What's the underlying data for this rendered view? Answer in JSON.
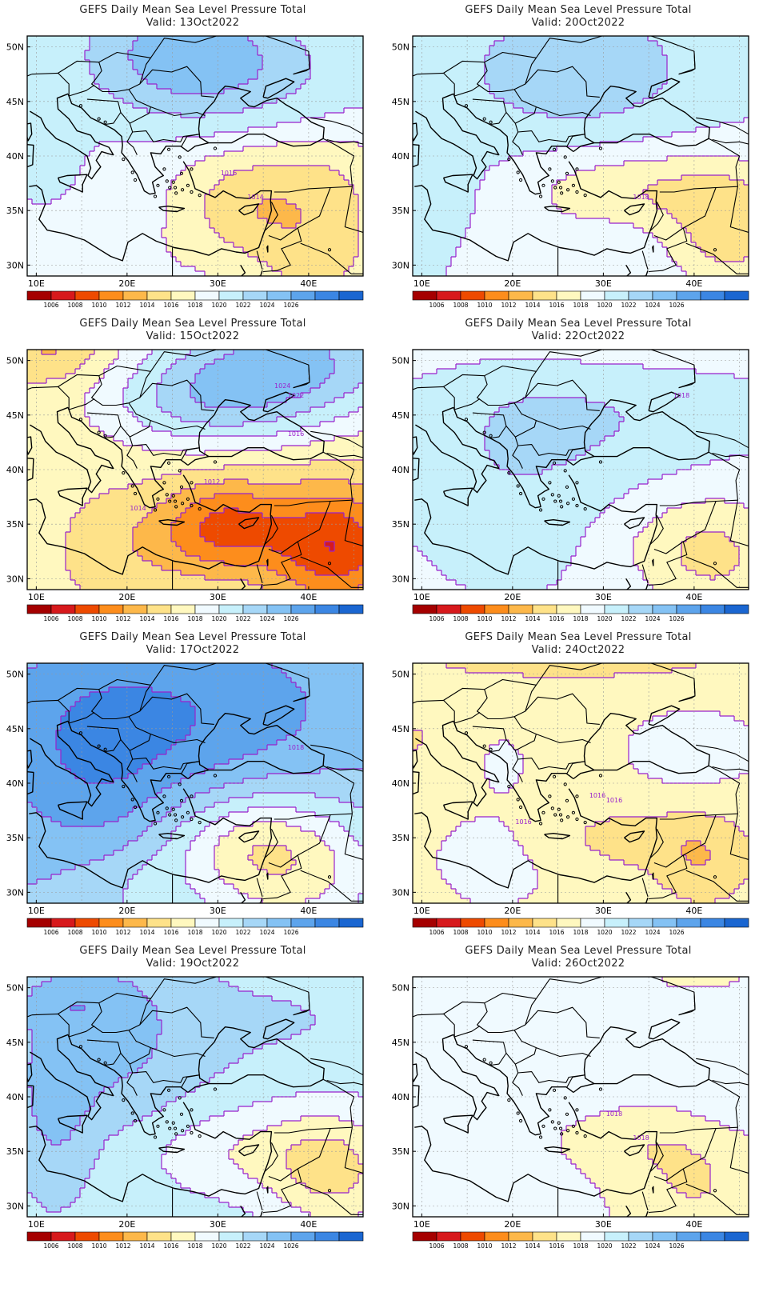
{
  "panels": [
    {
      "id": "p0",
      "title": "GEFS Daily Mean Sea Level Pressure Total",
      "valid": "Valid: 13Oct2022",
      "contour_labels": [
        "1016",
        "1014"
      ],
      "field": "d13"
    },
    {
      "id": "p1",
      "title": "GEFS Daily Mean Sea Level Pressure Total",
      "valid": "Valid: 20Oct2022",
      "contour_labels": [
        "1018"
      ],
      "field": "d20"
    },
    {
      "id": "p2",
      "title": "GEFS Daily Mean Sea Level Pressure Total",
      "valid": "Valid: 15Oct2022",
      "contour_labels": [
        "1024",
        "1022",
        "1016",
        "1012",
        "1014"
      ],
      "field": "d15"
    },
    {
      "id": "p3",
      "title": "GEFS Daily Mean Sea Level Pressure Total",
      "valid": "Valid: 22Oct2022",
      "contour_labels": [
        "1018"
      ],
      "field": "d22"
    },
    {
      "id": "p4",
      "title": "GEFS Daily Mean Sea Level Pressure Total",
      "valid": "Valid: 17Oct2022",
      "contour_labels": [
        "1018"
      ],
      "field": "d17"
    },
    {
      "id": "p5",
      "title": "GEFS Daily Mean Sea Level Pressure Total",
      "valid": "Valid: 24Oct2022",
      "contour_labels": [
        "1016",
        "1016",
        "1016"
      ],
      "field": "d24"
    },
    {
      "id": "p6",
      "title": "GEFS Daily Mean Sea Level Pressure Total",
      "valid": "Valid: 19Oct2022",
      "contour_labels": [],
      "field": "d19"
    },
    {
      "id": "p7",
      "title": "GEFS Daily Mean Sea Level Pressure Total",
      "valid": "Valid: 26Oct2022",
      "contour_labels": [
        "1018",
        "1018"
      ],
      "field": "d26"
    }
  ],
  "axes": {
    "lat_labels": [
      "50N",
      "45N",
      "40N",
      "35N",
      "30N"
    ],
    "lon_labels": [
      "10E",
      "20E",
      "30E",
      "40E"
    ],
    "lon_range": [
      9,
      46
    ],
    "lat_range": [
      29,
      51
    ],
    "grid": true
  },
  "colorbar": {
    "labels": [
      "1006",
      "1008",
      "1010",
      "1012",
      "1014",
      "1016",
      "1018",
      "1020",
      "1022",
      "1024",
      "1026"
    ],
    "colors": [
      "#a50000",
      "#d7191c",
      "#ee4a00",
      "#fd8d1c",
      "#fdb84a",
      "#fee289",
      "#fff8bf",
      "#f0faff",
      "#c7f0fb",
      "#a6d7f7",
      "#84c2f4",
      "#5da4ec",
      "#3b86e3",
      "#1a66d1"
    ]
  },
  "contour_color": "#9922cc",
  "coast_color": "#000000"
}
